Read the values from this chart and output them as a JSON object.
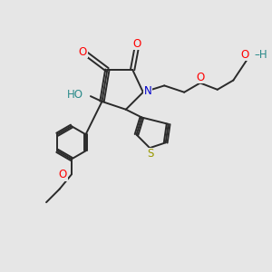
{
  "bg_color": "#e6e6e6",
  "bond_color": "#2a2a2a",
  "atom_colors": {
    "O": "#ff0000",
    "N": "#0000cc",
    "S": "#999900",
    "HO": "#2a8a8a",
    "C": "#2a2a2a"
  },
  "lw": 1.4
}
